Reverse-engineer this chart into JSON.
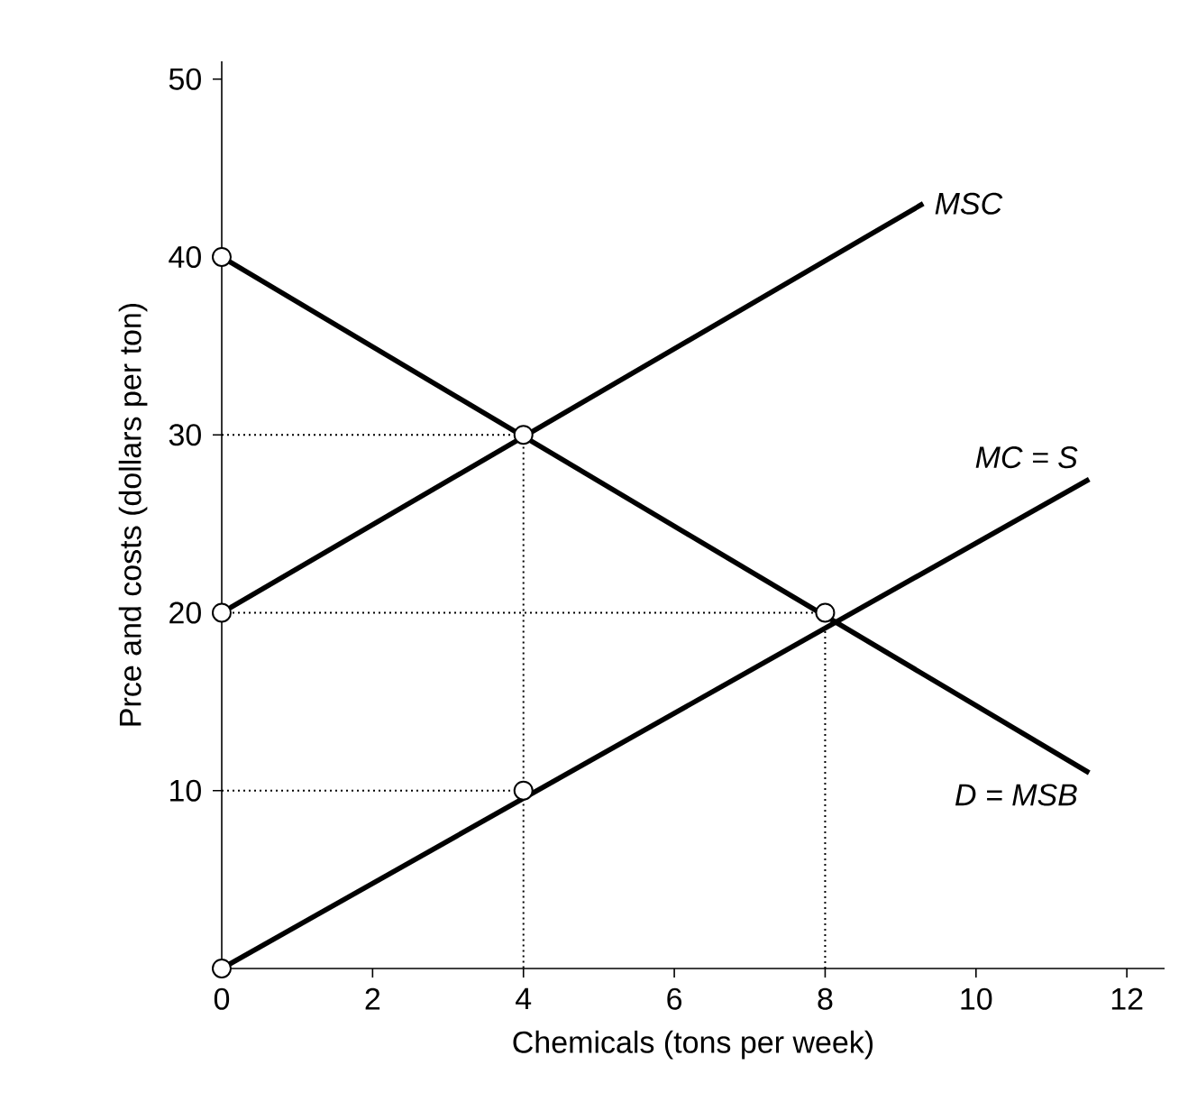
{
  "chart_data": {
    "type": "line",
    "xlabel": "Chemicals (tons per week)",
    "ylabel": "Prce and costs (dollars per ton)",
    "xlim": [
      0,
      12.5
    ],
    "xticks": [
      0,
      2,
      4,
      6,
      8,
      10,
      12
    ],
    "ylim": [
      0,
      51
    ],
    "yticks": [
      10,
      20,
      30,
      40,
      50
    ],
    "grid": false,
    "legend": false,
    "series": [
      {
        "name": "MSC",
        "color": "#000000",
        "x": [
          0,
          9.3
        ],
        "values": [
          20,
          43
        ]
      },
      {
        "name": "MC = S",
        "color": "#000000",
        "x": [
          0,
          11.5
        ],
        "values": [
          0,
          27.5
        ]
      },
      {
        "name": "D = MSB",
        "color": "#000000",
        "x": [
          0,
          11.5
        ],
        "values": [
          40,
          11
        ]
      },
      {
        "color": "#000000",
        "line_style": "dotted",
        "x": [
          0,
          4,
          4
        ],
        "values": [
          30,
          30,
          0
        ]
      },
      {
        "color": "#000000",
        "line_style": "dotted",
        "x": [
          0,
          8,
          8
        ],
        "values": [
          20,
          20,
          0
        ]
      },
      {
        "color": "#000000",
        "line_style": "dotted",
        "x": [
          0,
          4
        ],
        "values": [
          10,
          10
        ]
      },
      {
        "type": "scatter",
        "marker": "circle",
        "color": "#000000",
        "x": [
          0,
          0,
          0,
          4,
          4,
          8
        ],
        "values": [
          40,
          20,
          0,
          30,
          10,
          20
        ]
      }
    ]
  }
}
